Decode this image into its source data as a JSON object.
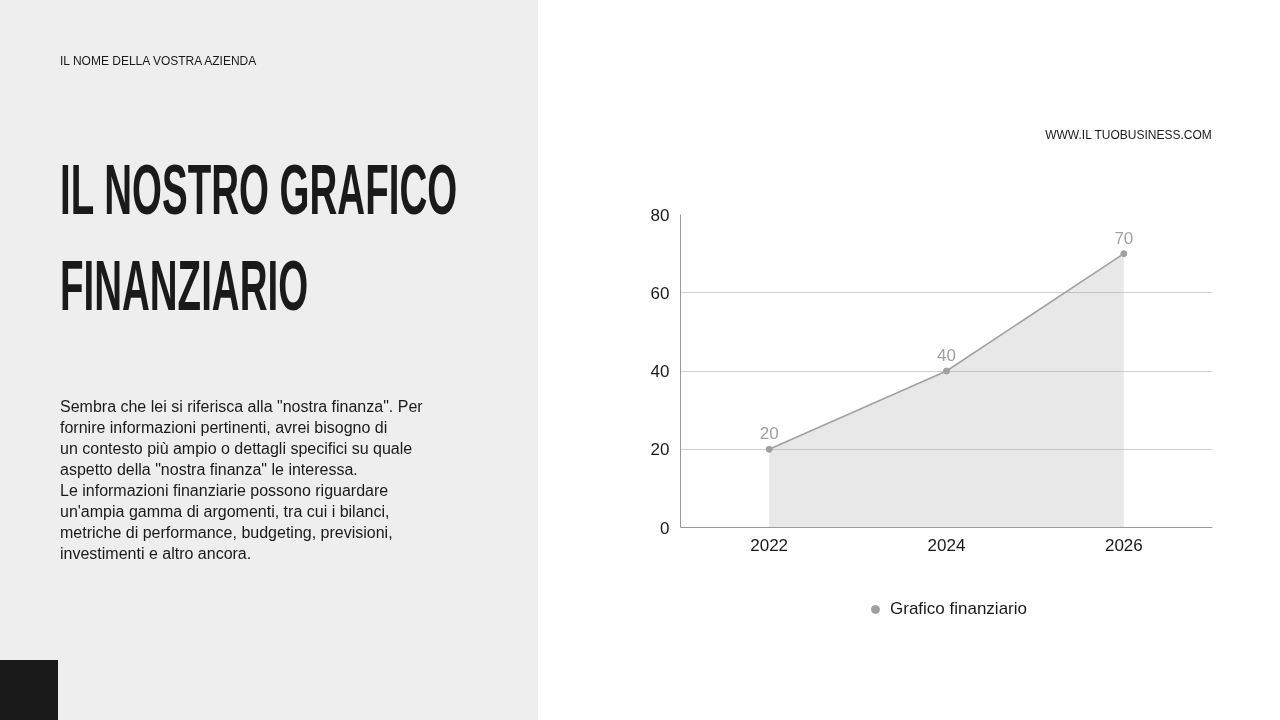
{
  "chart_data": {
    "type": "area",
    "title": "IL NOSTRO GRAFICO FINANZIARIO",
    "subtitle": "Sembra che lei si riferisca alla \"nostra finanza\". Per\nfornire informazioni pertinenti, avrei bisogno di\nun contesto più ampio o dettagli specifici su quale\naspetto della \"nostra finanza\" le interessa.\nLe informazioni finanziarie possono riguardare\nun'ampia gamma di argomenti, tra cui i bilanci,\nmetriche di performance, budgeting, previsioni,\ninvestimenti e altro ancora.",
    "annotations": [
      "IL NOME DELLA VOSTRA AZIENDA",
      "WWW.IL TUOBUSINESS.COM"
    ],
    "categories": [
      "2022",
      "2024",
      "2026"
    ],
    "series": [
      {
        "name": "Grafico finanziario",
        "color": "#a0a0a0",
        "values": [
          20,
          40,
          70
        ]
      }
    ],
    "ylim": [
      0,
      80
    ],
    "yticks": [
      0,
      20,
      40,
      60,
      80
    ],
    "grid": "y",
    "legend": "bottom",
    "marker": "circle",
    "data_labels": true
  }
}
